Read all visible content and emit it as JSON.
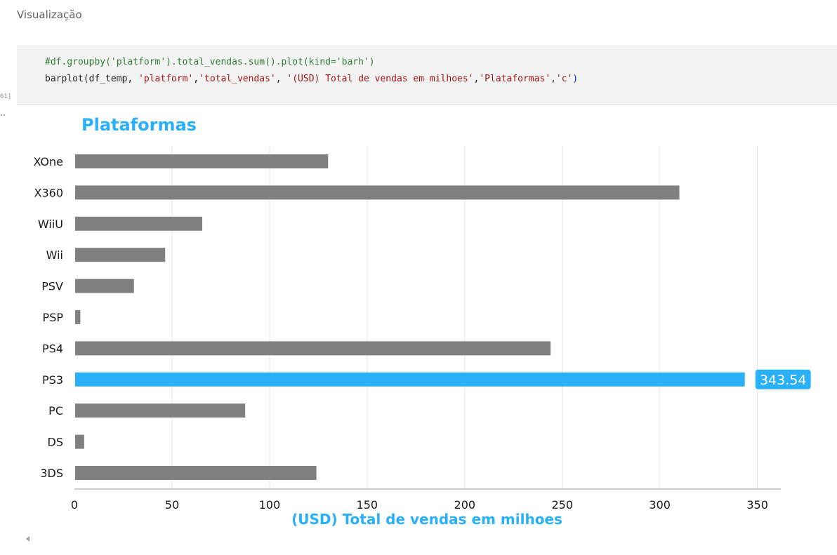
{
  "section": {
    "heading": "Visualização"
  },
  "cell": {
    "execution_count": "61]",
    "output_marker": "..",
    "code_comment": "#df.groupby('platform').total_vendas.sum().plot(kind='barh')",
    "code_call": {
      "func": "barplot(df_temp, ",
      "arg1": "'platform'",
      "sep1": ",",
      "arg2": "'total_vendas'",
      "sep2": ", ",
      "arg3": "'(USD) Total de vendas em milhoes'",
      "sep3": ",",
      "arg4": "'Plataformas'",
      "sep4": ",",
      "arg5": "'c'",
      "close": ")"
    }
  },
  "chart_data": {
    "type": "bar",
    "orientation": "horizontal",
    "title": "Plataformas",
    "xlabel": "(USD) Total de vendas em milhoes",
    "ylabel": "",
    "categories": [
      "XOne",
      "X360",
      "WiiU",
      "Wii",
      "PSV",
      "PSP",
      "PS4",
      "PS3",
      "PC",
      "DS",
      "3DS"
    ],
    "values": [
      130,
      310,
      65.5,
      46.5,
      30.5,
      3,
      244,
      343.54,
      87.5,
      5,
      124
    ],
    "xlim": [
      0,
      362
    ],
    "xticks": [
      0,
      50,
      100,
      150,
      200,
      250,
      300,
      350
    ],
    "highlight": {
      "category": "PS3",
      "label": "343.54"
    },
    "grid": "vertical",
    "colors": {
      "bar": "#808080",
      "highlight": "#29b0f8",
      "title": "#29b0f8",
      "grid": "#e6e6e6",
      "axis": "#cccccc"
    }
  }
}
